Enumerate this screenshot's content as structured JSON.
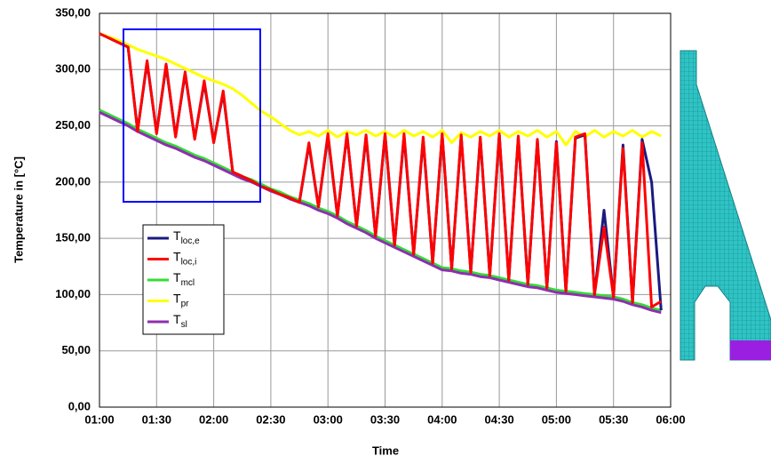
{
  "chart_data": {
    "type": "line",
    "x_label": "Time",
    "y_label": "Temperature in [°C]",
    "x": [
      "01:00",
      "01:05",
      "01:10",
      "01:15",
      "01:20",
      "01:25",
      "01:30",
      "01:35",
      "01:40",
      "01:45",
      "01:50",
      "01:55",
      "02:00",
      "02:05",
      "02:10",
      "02:15",
      "02:20",
      "02:25",
      "02:30",
      "02:35",
      "02:40",
      "02:45",
      "02:50",
      "02:55",
      "03:00",
      "03:05",
      "03:10",
      "03:15",
      "03:20",
      "03:25",
      "03:30",
      "03:35",
      "03:40",
      "03:45",
      "03:50",
      "03:55",
      "04:00",
      "04:05",
      "04:10",
      "04:15",
      "04:20",
      "04:25",
      "04:30",
      "04:35",
      "04:40",
      "04:45",
      "04:50",
      "04:55",
      "05:00",
      "05:05",
      "05:10",
      "05:15",
      "05:20",
      "05:25",
      "05:30",
      "05:35",
      "05:40",
      "05:45",
      "05:50",
      "05:55"
    ],
    "xlim": [
      "01:00",
      "06:00"
    ],
    "xticks": [
      "01:00",
      "01:30",
      "02:00",
      "02:30",
      "03:00",
      "03:30",
      "04:00",
      "04:30",
      "05:00",
      "05:30",
      "06:00"
    ],
    "ylim": [
      0,
      350
    ],
    "yticks": [
      {
        "value": 0,
        "label": "0,00"
      },
      {
        "value": 50,
        "label": "50,00"
      },
      {
        "value": 100,
        "label": "100,00"
      },
      {
        "value": 150,
        "label": "150,00"
      },
      {
        "value": 200,
        "label": "200,00"
      },
      {
        "value": 250,
        "label": "250,00"
      },
      {
        "value": 300,
        "label": "300,00"
      },
      {
        "value": 350,
        "label": "350,00"
      }
    ],
    "grid": true,
    "series": [
      {
        "name": "Tloc,e",
        "color": "#1a1a80",
        "values": [
          332,
          328,
          324,
          320,
          246,
          306,
          244,
          303,
          241,
          296,
          239,
          288,
          236,
          279,
          209,
          205,
          201,
          196,
          193,
          189,
          186,
          182,
          233,
          178,
          241,
          170,
          242,
          161,
          240,
          152,
          242,
          144,
          241,
          136,
          238,
          128,
          242,
          123,
          241,
          120,
          239,
          117,
          242,
          113,
          240,
          109,
          237,
          106,
          236,
          103,
          239,
          242,
          100,
          175,
          98,
          233,
          93,
          238,
          200,
          86
        ]
      },
      {
        "name": "Tloc,i",
        "color": "#ff0000",
        "values": [
          332,
          328,
          324,
          320,
          245,
          308,
          243,
          305,
          240,
          298,
          238,
          290,
          235,
          281,
          209,
          205,
          201,
          196,
          193,
          189,
          186,
          182,
          235,
          178,
          243,
          170,
          243,
          161,
          242,
          152,
          243,
          144,
          243,
          136,
          240,
          128,
          243,
          123,
          242,
          120,
          240,
          117,
          243,
          113,
          241,
          109,
          238,
          106,
          235,
          103,
          240,
          243,
          100,
          160,
          98,
          230,
          93,
          235,
          89,
          94
        ]
      },
      {
        "name": "Tmcl",
        "color": "#33dd33",
        "values": [
          264,
          260,
          256,
          252,
          247,
          243,
          239,
          235,
          232,
          228,
          224,
          221,
          217,
          213,
          209,
          205,
          202,
          198,
          194,
          191,
          187,
          184,
          181,
          177,
          174,
          170,
          165,
          161,
          157,
          152,
          148,
          144,
          140,
          136,
          132,
          128,
          124,
          123,
          121,
          120,
          118,
          117,
          115,
          113,
          111,
          109,
          108,
          106,
          104,
          103,
          102,
          101,
          100,
          99,
          98,
          96,
          93,
          91,
          88,
          86
        ]
      },
      {
        "name": "Tpr",
        "color": "#ffff00",
        "values": [
          332,
          329,
          326,
          322,
          318,
          315,
          312,
          309,
          305,
          301,
          297,
          293,
          290,
          287,
          283,
          277,
          270,
          263,
          258,
          252,
          246,
          242,
          245,
          241,
          246,
          240,
          245,
          242,
          246,
          241,
          245,
          240,
          246,
          241,
          245,
          240,
          246,
          235,
          244,
          240,
          245,
          241,
          246,
          240,
          245,
          241,
          246,
          240,
          245,
          233,
          245,
          240,
          246,
          240,
          245,
          241,
          246,
          240,
          245,
          241
        ]
      },
      {
        "name": "Tsl",
        "color": "#8e2fb0",
        "values": [
          262,
          258,
          254,
          250,
          245,
          241,
          237,
          233,
          230,
          226,
          222,
          219,
          215,
          211,
          207,
          203,
          200,
          196,
          192,
          189,
          185,
          182,
          179,
          175,
          172,
          168,
          163,
          159,
          155,
          150,
          146,
          142,
          138,
          134,
          130,
          126,
          122,
          121,
          119,
          118,
          116,
          115,
          113,
          111,
          109,
          107,
          106,
          104,
          102,
          101,
          100,
          99,
          98,
          97,
          96,
          94,
          91,
          89,
          86,
          84
        ]
      }
    ]
  }
}
